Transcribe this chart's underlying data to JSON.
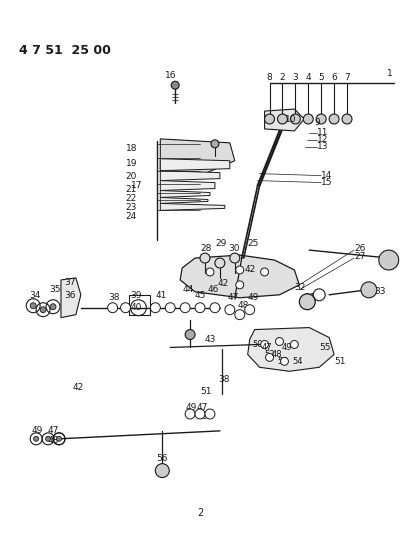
{
  "bg_color": "#ffffff",
  "line_color": "#1a1a1a",
  "text_color": "#1a1a1a",
  "figsize": [
    4.08,
    5.33
  ],
  "dpi": 100,
  "title": "4 7 51  25 00",
  "footnote": "2"
}
